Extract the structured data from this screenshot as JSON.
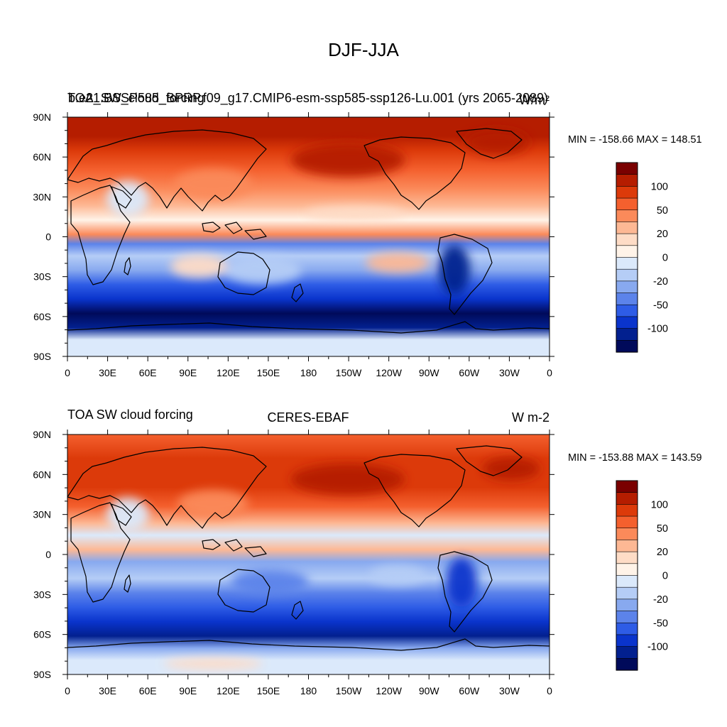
{
  "figure": {
    "title": "DJF-JJA"
  },
  "panels": [
    {
      "left_label": "TOA_SW_cloud_forcing",
      "center_label": "b.e21.BSSP585_BPRP.f09_g17.CMIP6-esm-ssp585-ssp126-Lu.001 (yrs 2065-2089)",
      "right_label": "W/m²",
      "stats": "MIN = -158.66 MAX = 148.51"
    },
    {
      "left_label": "TOA SW cloud forcing",
      "center_label": "CERES-EBAF",
      "right_label": "W m-2",
      "stats": "MIN = -153.88 MAX = 143.59"
    }
  ],
  "axes": {
    "lon_ticks": [
      "0",
      "30E",
      "60E",
      "90E",
      "120E",
      "150E",
      "180",
      "150W",
      "120W",
      "90W",
      "60W",
      "30W",
      "0"
    ],
    "lat_ticks": [
      "90N",
      "60N",
      "30N",
      "0",
      "30S",
      "60S",
      "90S"
    ]
  },
  "colorbar": {
    "colors": [
      "#7a0000",
      "#b51d00",
      "#dc3a0a",
      "#f4602e",
      "#fb8a5a",
      "#fdb894",
      "#fedcc6",
      "#fff3e8",
      "#dbe9fb",
      "#b5cdf6",
      "#88a9ef",
      "#5c83ea",
      "#2e5ce6",
      "#0a34cc",
      "#02208f",
      "#000a5a"
    ],
    "labels": [
      {
        "value": "100",
        "bin": 2
      },
      {
        "value": "50",
        "bin": 4
      },
      {
        "value": "20",
        "bin": 6
      },
      {
        "value": "0",
        "bin": 8
      },
      {
        "value": "-20",
        "bin": 10
      },
      {
        "value": "-50",
        "bin": 12
      },
      {
        "value": "-100",
        "bin": 14
      }
    ]
  }
}
